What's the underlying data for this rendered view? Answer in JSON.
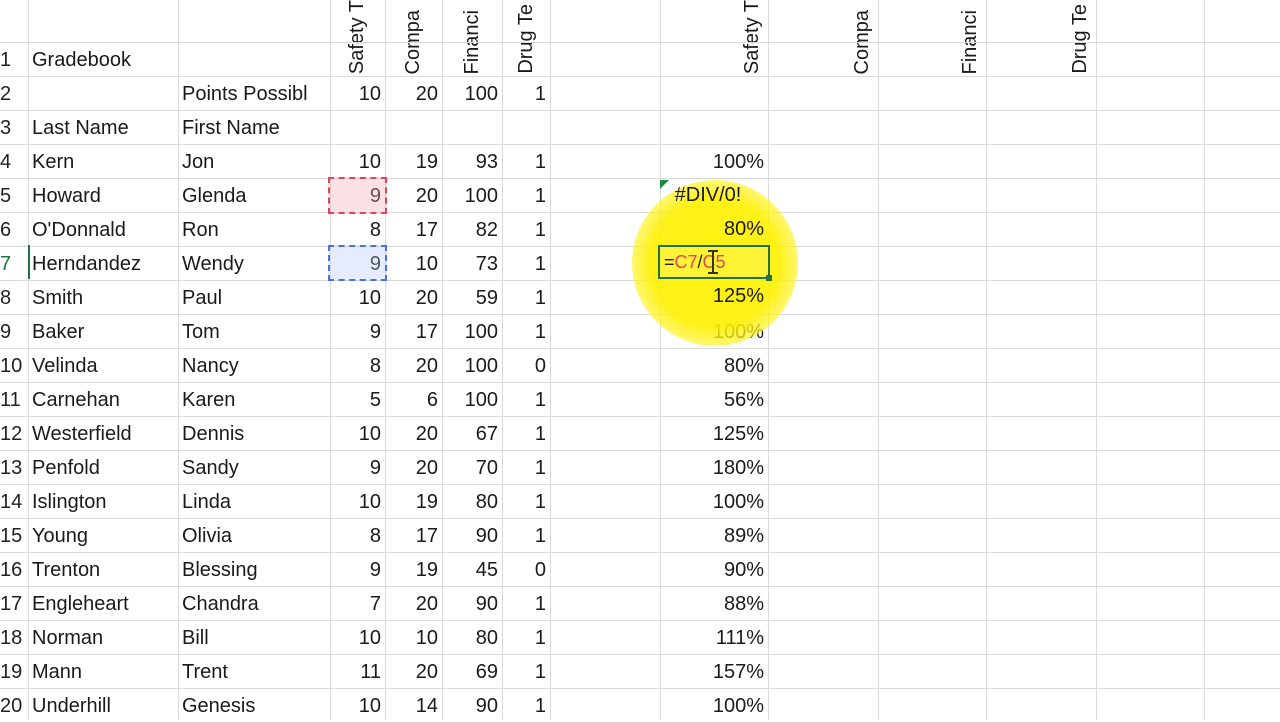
{
  "columns": {
    "rotated_headers": [
      "Safety T",
      "Compa",
      "Financi",
      "Drug Te",
      "Safety T",
      "Compa",
      "Financi",
      "Drug Te"
    ]
  },
  "rows": [
    {
      "n": "1",
      "a": "Gradebook",
      "b": "",
      "c": "",
      "d": "",
      "e": "",
      "f": "",
      "g": ""
    },
    {
      "n": "2",
      "a": "",
      "b": "Points Possibl",
      "c": "10",
      "d": "20",
      "e": "100",
      "f": "1",
      "g": ""
    },
    {
      "n": "3",
      "a": "Last Name",
      "b": "First Name",
      "c": "",
      "d": "",
      "e": "",
      "f": "",
      "g": ""
    },
    {
      "n": "4",
      "a": "Kern",
      "b": "Jon",
      "c": "10",
      "d": "19",
      "e": "93",
      "f": "1",
      "g": "100%"
    },
    {
      "n": "5",
      "a": "Howard",
      "b": "Glenda",
      "c": "9",
      "d": "20",
      "e": "100",
      "f": "1",
      "g": "#DIV/0!"
    },
    {
      "n": "6",
      "a": "O'Donnald",
      "b": "Ron",
      "c": "8",
      "d": "17",
      "e": "82",
      "f": "1",
      "g": "80%"
    },
    {
      "n": "7",
      "a": "Herndandez",
      "b": "Wendy",
      "c": "9",
      "d": "10",
      "e": "73",
      "f": "1",
      "g": ""
    },
    {
      "n": "8",
      "a": "Smith",
      "b": "Paul",
      "c": "10",
      "d": "20",
      "e": "59",
      "f": "1",
      "g": "125%"
    },
    {
      "n": "9",
      "a": "Baker",
      "b": "Tom",
      "c": "9",
      "d": "17",
      "e": "100",
      "f": "1",
      "g": "100%"
    },
    {
      "n": "10",
      "a": "Velinda",
      "b": "Nancy",
      "c": "8",
      "d": "20",
      "e": "100",
      "f": "0",
      "g": "80%"
    },
    {
      "n": "11",
      "a": "Carnehan",
      "b": "Karen",
      "c": "5",
      "d": "6",
      "e": "100",
      "f": "1",
      "g": "56%"
    },
    {
      "n": "12",
      "a": "Westerfield",
      "b": "Dennis",
      "c": "10",
      "d": "20",
      "e": "67",
      "f": "1",
      "g": "125%"
    },
    {
      "n": "13",
      "a": "Penfold",
      "b": "Sandy",
      "c": "9",
      "d": "20",
      "e": "70",
      "f": "1",
      "g": "180%"
    },
    {
      "n": "14",
      "a": "Islington",
      "b": "Linda",
      "c": "10",
      "d": "19",
      "e": "80",
      "f": "1",
      "g": "100%"
    },
    {
      "n": "15",
      "a": "Young",
      "b": "Olivia",
      "c": "8",
      "d": "17",
      "e": "90",
      "f": "1",
      "g": "89%"
    },
    {
      "n": "16",
      "a": "Trenton",
      "b": "Blessing",
      "c": "9",
      "d": "19",
      "e": "45",
      "f": "0",
      "g": "90%"
    },
    {
      "n": "17",
      "a": "Engleheart",
      "b": "Chandra",
      "c": "7",
      "d": "20",
      "e": "90",
      "f": "1",
      "g": "88%"
    },
    {
      "n": "18",
      "a": "Norman",
      "b": "Bill",
      "c": "10",
      "d": "10",
      "e": "80",
      "f": "1",
      "g": "111%"
    },
    {
      "n": "19",
      "a": "Mann",
      "b": "Trent",
      "c": "11",
      "d": "20",
      "e": "69",
      "f": "1",
      "g": "157%"
    },
    {
      "n": "20",
      "a": "Underhill",
      "b": "Genesis",
      "c": "10",
      "d": "14",
      "e": "90",
      "f": "1",
      "g": "100%"
    }
  ],
  "editing": {
    "prefix": "=",
    "ref1": "C7",
    "op": "/",
    "ref2": "C5"
  },
  "colors": {
    "selection_green": "#217346",
    "ref_red": "#d9485a",
    "ref_blue": "#4a72e0",
    "highlight_yellow": "#fff000"
  }
}
